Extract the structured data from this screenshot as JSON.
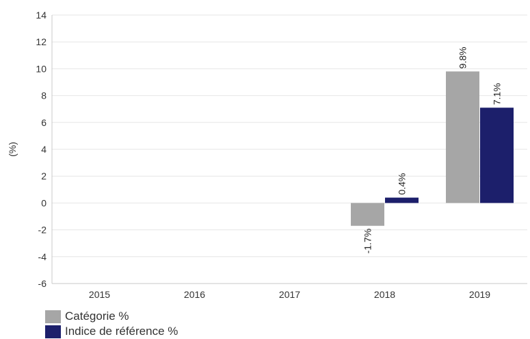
{
  "chart_data": {
    "type": "bar",
    "title": "",
    "xlabel": "",
    "ylabel": "(%)",
    "categories": [
      "2015",
      "2016",
      "2017",
      "2018",
      "2019"
    ],
    "ylim": [
      -6,
      14
    ],
    "yticks": [
      -6,
      -4,
      -2,
      0,
      2,
      4,
      6,
      8,
      10,
      12,
      14
    ],
    "grid": true,
    "legend_position": "bottom-left",
    "series": [
      {
        "name": "Catégorie %",
        "color": "#a6a6a6",
        "values": [
          null,
          null,
          null,
          -1.7,
          9.8
        ],
        "labels": [
          null,
          null,
          null,
          "-1.7%",
          "9.8%"
        ]
      },
      {
        "name": "Indice de référence %",
        "color": "#1c1f6b",
        "values": [
          null,
          null,
          null,
          0.4,
          7.1
        ],
        "labels": [
          null,
          null,
          null,
          "0.4%",
          "7.1%"
        ]
      }
    ]
  }
}
